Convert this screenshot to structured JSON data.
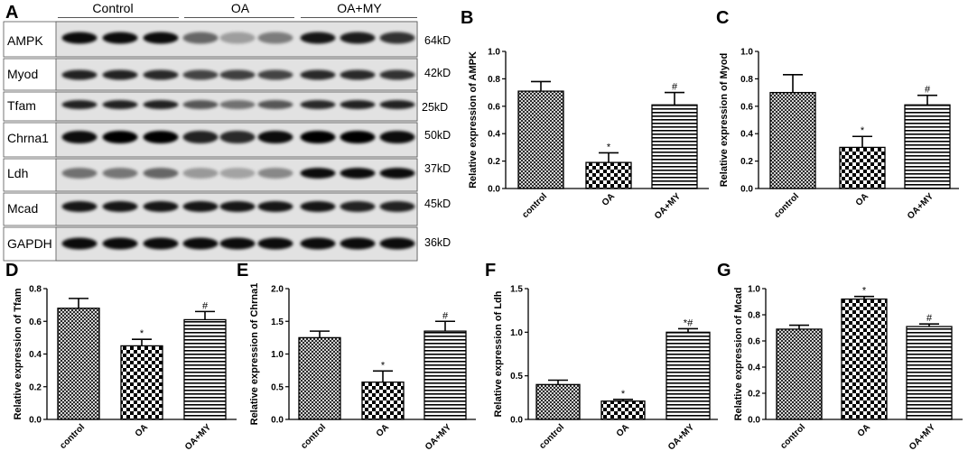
{
  "blot": {
    "panel": "A",
    "groups": [
      "Control",
      "OA",
      "OA+MY"
    ],
    "rows": [
      {
        "protein": "AMPK",
        "size": "64kD",
        "band_intensity": [
          0.95,
          0.95,
          0.95,
          0.55,
          0.3,
          0.45,
          0.9,
          0.88,
          0.78
        ]
      },
      {
        "protein": "Myod",
        "size": "42kD",
        "band_intensity": [
          0.85,
          0.85,
          0.82,
          0.7,
          0.72,
          0.7,
          0.82,
          0.82,
          0.78
        ]
      },
      {
        "protein": "Tfam",
        "size": "25kD",
        "band_intensity": [
          0.85,
          0.85,
          0.85,
          0.62,
          0.5,
          0.62,
          0.82,
          0.85,
          0.85
        ]
      },
      {
        "protein": "Chrna1",
        "size": "50kD",
        "band_intensity": [
          0.95,
          1.0,
          1.0,
          0.85,
          0.82,
          0.95,
          1.0,
          1.0,
          0.95
        ]
      },
      {
        "protein": "Ldh",
        "size": "37kD",
        "band_intensity": [
          0.5,
          0.48,
          0.55,
          0.32,
          0.28,
          0.4,
          0.95,
          0.95,
          0.95
        ]
      },
      {
        "protein": "Mcad",
        "size": "45kD",
        "band_intensity": [
          0.9,
          0.9,
          0.9,
          0.9,
          0.9,
          0.9,
          0.9,
          0.85,
          0.85
        ]
      },
      {
        "protein": "GAPDH",
        "size": "36kD",
        "band_intensity": [
          0.95,
          0.95,
          0.95,
          0.95,
          0.95,
          0.95,
          0.95,
          0.95,
          0.95
        ]
      }
    ]
  },
  "chart_data": [
    {
      "panel": "B",
      "type": "bar",
      "categories": [
        "control",
        "OA",
        "OA+MY"
      ],
      "values": [
        0.71,
        0.19,
        0.61
      ],
      "errors": [
        0.07,
        0.07,
        0.09
      ],
      "significance": [
        "",
        "*",
        "#"
      ],
      "ylabel": "Relative expression of AMPK",
      "ylim": [
        0,
        1.0
      ],
      "yticks": [
        "0.0",
        "0.2",
        "0.4",
        "0.6",
        "0.8",
        "1.0"
      ],
      "bar_patterns": [
        "crosshatch",
        "checkerboard",
        "horizontal-lines"
      ]
    },
    {
      "panel": "C",
      "type": "bar",
      "categories": [
        "control",
        "OA",
        "OA+MY"
      ],
      "values": [
        0.7,
        0.3,
        0.61
      ],
      "errors": [
        0.13,
        0.08,
        0.07
      ],
      "significance": [
        "",
        "*",
        "#"
      ],
      "ylabel": "Relative expression of Myod",
      "ylim": [
        0,
        1.0
      ],
      "yticks": [
        "0.0",
        "0.2",
        "0.4",
        "0.6",
        "0.8",
        "1.0"
      ],
      "bar_patterns": [
        "crosshatch",
        "checkerboard",
        "horizontal-lines"
      ]
    },
    {
      "panel": "D",
      "type": "bar",
      "categories": [
        "control",
        "OA",
        "OA+MY"
      ],
      "values": [
        0.68,
        0.45,
        0.61
      ],
      "errors": [
        0.06,
        0.04,
        0.05
      ],
      "significance": [
        "",
        "*",
        "#"
      ],
      "ylabel": "Relative expression of Tfam",
      "ylim": [
        0,
        0.8
      ],
      "yticks": [
        "0.0",
        "0.2",
        "0.4",
        "0.6",
        "0.8"
      ],
      "bar_patterns": [
        "crosshatch",
        "checkerboard",
        "horizontal-lines"
      ]
    },
    {
      "panel": "E",
      "type": "bar",
      "categories": [
        "control",
        "OA",
        "OA+MY"
      ],
      "values": [
        1.25,
        0.57,
        1.35
      ],
      "errors": [
        0.1,
        0.17,
        0.15
      ],
      "significance": [
        "",
        "*",
        "#"
      ],
      "ylabel": "Relative expression of Chrna1",
      "ylim": [
        0,
        2.0
      ],
      "yticks": [
        "0.0",
        "0.5",
        "1.0",
        "1.5",
        "2.0"
      ],
      "bar_patterns": [
        "crosshatch",
        "checkerboard",
        "horizontal-lines"
      ]
    },
    {
      "panel": "F",
      "type": "bar",
      "categories": [
        "control",
        "OA",
        "OA+MY"
      ],
      "values": [
        0.4,
        0.21,
        1.0
      ],
      "errors": [
        0.05,
        0.02,
        0.04
      ],
      "significance": [
        "",
        "*",
        "*#"
      ],
      "ylabel": "Relative expression of Ldh",
      "ylim": [
        0,
        1.5
      ],
      "yticks": [
        "0.0",
        "0.5",
        "1.0",
        "1.5"
      ],
      "bar_patterns": [
        "crosshatch",
        "checkerboard",
        "horizontal-lines"
      ]
    },
    {
      "panel": "G",
      "type": "bar",
      "categories": [
        "control",
        "OA",
        "OA+MY"
      ],
      "values": [
        0.69,
        0.92,
        0.71
      ],
      "errors": [
        0.03,
        0.02,
        0.02
      ],
      "significance": [
        "",
        "*",
        "#"
      ],
      "ylabel": "Relative expression of Mcad",
      "ylim": [
        0,
        1.0
      ],
      "yticks": [
        "0.0",
        "0.2",
        "0.4",
        "0.6",
        "0.8",
        "1.0"
      ],
      "bar_patterns": [
        "crosshatch",
        "checkerboard",
        "horizontal-lines"
      ]
    }
  ]
}
